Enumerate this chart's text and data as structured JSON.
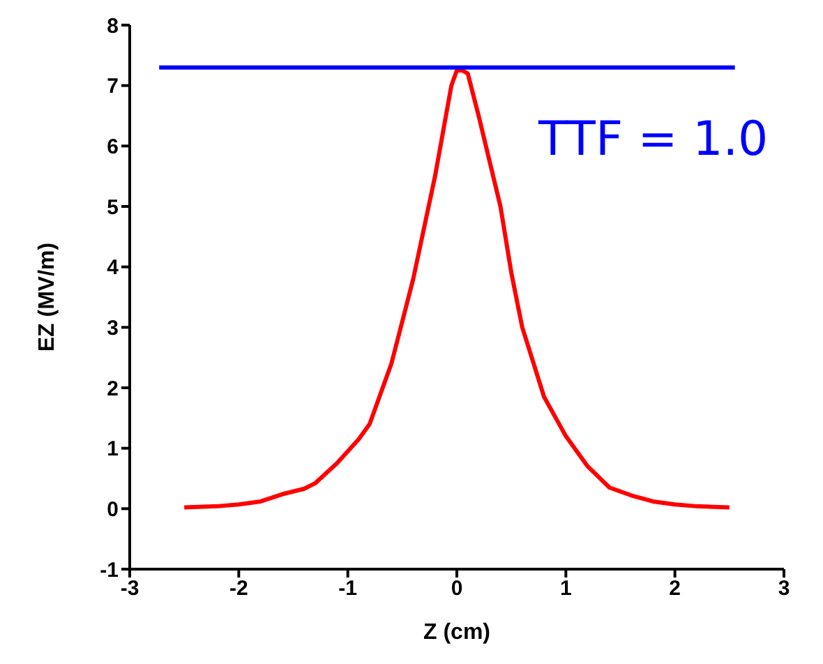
{
  "chart_data": {
    "type": "line",
    "xlabel": "Z (cm)",
    "ylabel": "EZ (MV/m)",
    "xlim": [
      -3,
      3
    ],
    "xticks": [
      -3,
      -2,
      -1,
      0,
      1,
      2,
      3
    ],
    "ylim": [
      -1,
      8
    ],
    "yticks": [
      -1,
      0,
      1,
      2,
      3,
      4,
      5,
      6,
      7,
      8
    ],
    "grid": false,
    "legend": false,
    "marker": "none",
    "line_style": "solid",
    "annotations": [
      "TTF = 1.0"
    ],
    "series": [
      {
        "color": "#ff0000",
        "x": [
          -2.5,
          -2.2,
          -2,
          -1.8,
          -1.6,
          -1.4,
          -1.3,
          -1.1,
          -0.9,
          -0.8,
          -0.6,
          -0.4,
          -0.2,
          -0.1,
          -0.05,
          0,
          0.05,
          0.1,
          0.2,
          0.4,
          0.5,
          0.6,
          0.8,
          1,
          1.2,
          1.4,
          1.6,
          1.8,
          2,
          2.2,
          2.5
        ],
        "values": [
          0.02,
          0.04,
          0.07,
          0.12,
          0.24,
          0.33,
          0.42,
          0.75,
          1.15,
          1.4,
          2.4,
          3.8,
          5.5,
          6.5,
          7,
          7.25,
          7.25,
          7.2,
          6.5,
          5,
          3.9,
          3,
          1.85,
          1.2,
          0.7,
          0.35,
          0.22,
          0.12,
          0.07,
          0.04,
          0.02
        ]
      },
      {
        "color": "#0000ff",
        "x": [
          -2.73,
          2.55
        ],
        "values": [
          7.3,
          7.3
        ]
      }
    ]
  }
}
